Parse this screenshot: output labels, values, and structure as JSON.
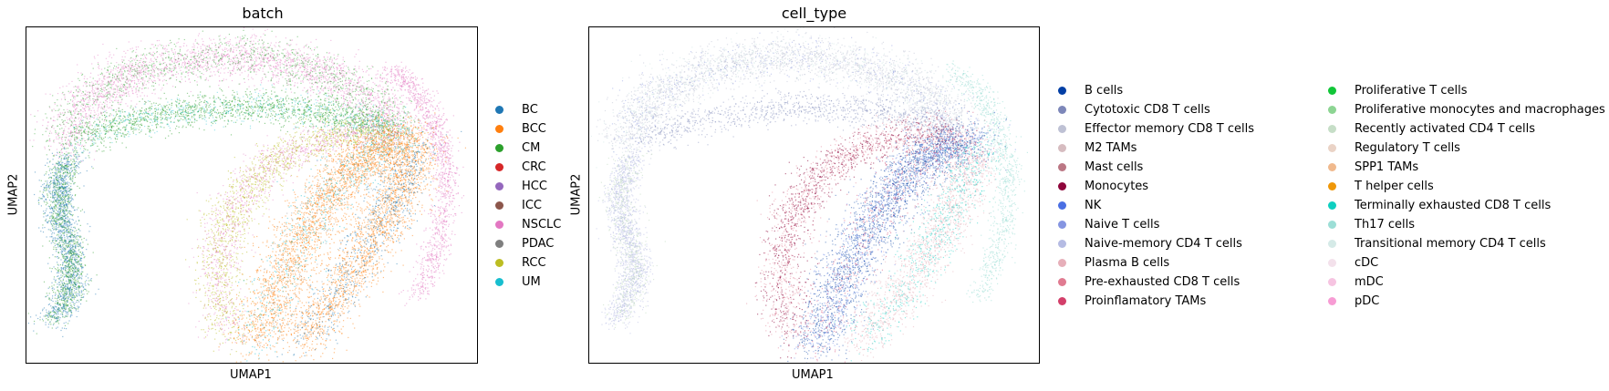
{
  "chart_data": [
    {
      "type": "scatter",
      "title": "batch",
      "xlabel": "UMAP1",
      "ylabel": "UMAP2",
      "grid": false,
      "legend_position": "right",
      "series": [
        {
          "name": "BC",
          "color": "#1f77b4"
        },
        {
          "name": "BCC",
          "color": "#ff7f0e"
        },
        {
          "name": "CM",
          "color": "#2ca02c"
        },
        {
          "name": "CRC",
          "color": "#d62728"
        },
        {
          "name": "HCC",
          "color": "#9467bd"
        },
        {
          "name": "ICC",
          "color": "#8c564b"
        },
        {
          "name": "NSCLC",
          "color": "#e377c2"
        },
        {
          "name": "PDAC",
          "color": "#7f7f7f"
        },
        {
          "name": "RCC",
          "color": "#bcbd22"
        },
        {
          "name": "UM",
          "color": "#17becf"
        }
      ]
    },
    {
      "type": "scatter",
      "title": "cell_type",
      "xlabel": "UMAP1",
      "ylabel": "UMAP2",
      "grid": false,
      "legend_position": "right",
      "series": [
        {
          "name": "B cells",
          "color": "#023fa5"
        },
        {
          "name": "Cytotoxic CD8 T cells",
          "color": "#7d87b9"
        },
        {
          "name": "Effector memory CD8 T cells",
          "color": "#bec1d4"
        },
        {
          "name": "M2 TAMs",
          "color": "#d6bcc0"
        },
        {
          "name": "Mast cells",
          "color": "#bb7784"
        },
        {
          "name": "Monocytes",
          "color": "#8e063b"
        },
        {
          "name": "NK",
          "color": "#4a6fe3"
        },
        {
          "name": "Naive T cells",
          "color": "#8595e1"
        },
        {
          "name": "Naive-memory CD4 T cells",
          "color": "#b5bbe3"
        },
        {
          "name": "Plasma B cells",
          "color": "#e6afb9"
        },
        {
          "name": "Pre-exhausted CD8 T cells",
          "color": "#e07b91"
        },
        {
          "name": "Proinflamatory TAMs",
          "color": "#d33f6a"
        },
        {
          "name": "Proliferative T cells",
          "color": "#11c638"
        },
        {
          "name": "Proliferative monocytes and macrophages",
          "color": "#8dd593"
        },
        {
          "name": "Recently activated CD4 T cells",
          "color": "#c6dec7"
        },
        {
          "name": "Regulatory T cells",
          "color": "#ead3c6"
        },
        {
          "name": "SPP1 TAMs",
          "color": "#f0b98d"
        },
        {
          "name": "T helper cells",
          "color": "#ef9708"
        },
        {
          "name": "Terminally exhausted CD8 T cells",
          "color": "#0fcfc0"
        },
        {
          "name": "Th17 cells",
          "color": "#9cded6"
        },
        {
          "name": "Transitional memory CD4 T cells",
          "color": "#d5eae7"
        },
        {
          "name": "cDC",
          "color": "#f3e1eb"
        },
        {
          "name": "mDC",
          "color": "#f6c4e1"
        },
        {
          "name": "pDC",
          "color": "#f79cd4"
        }
      ]
    }
  ]
}
